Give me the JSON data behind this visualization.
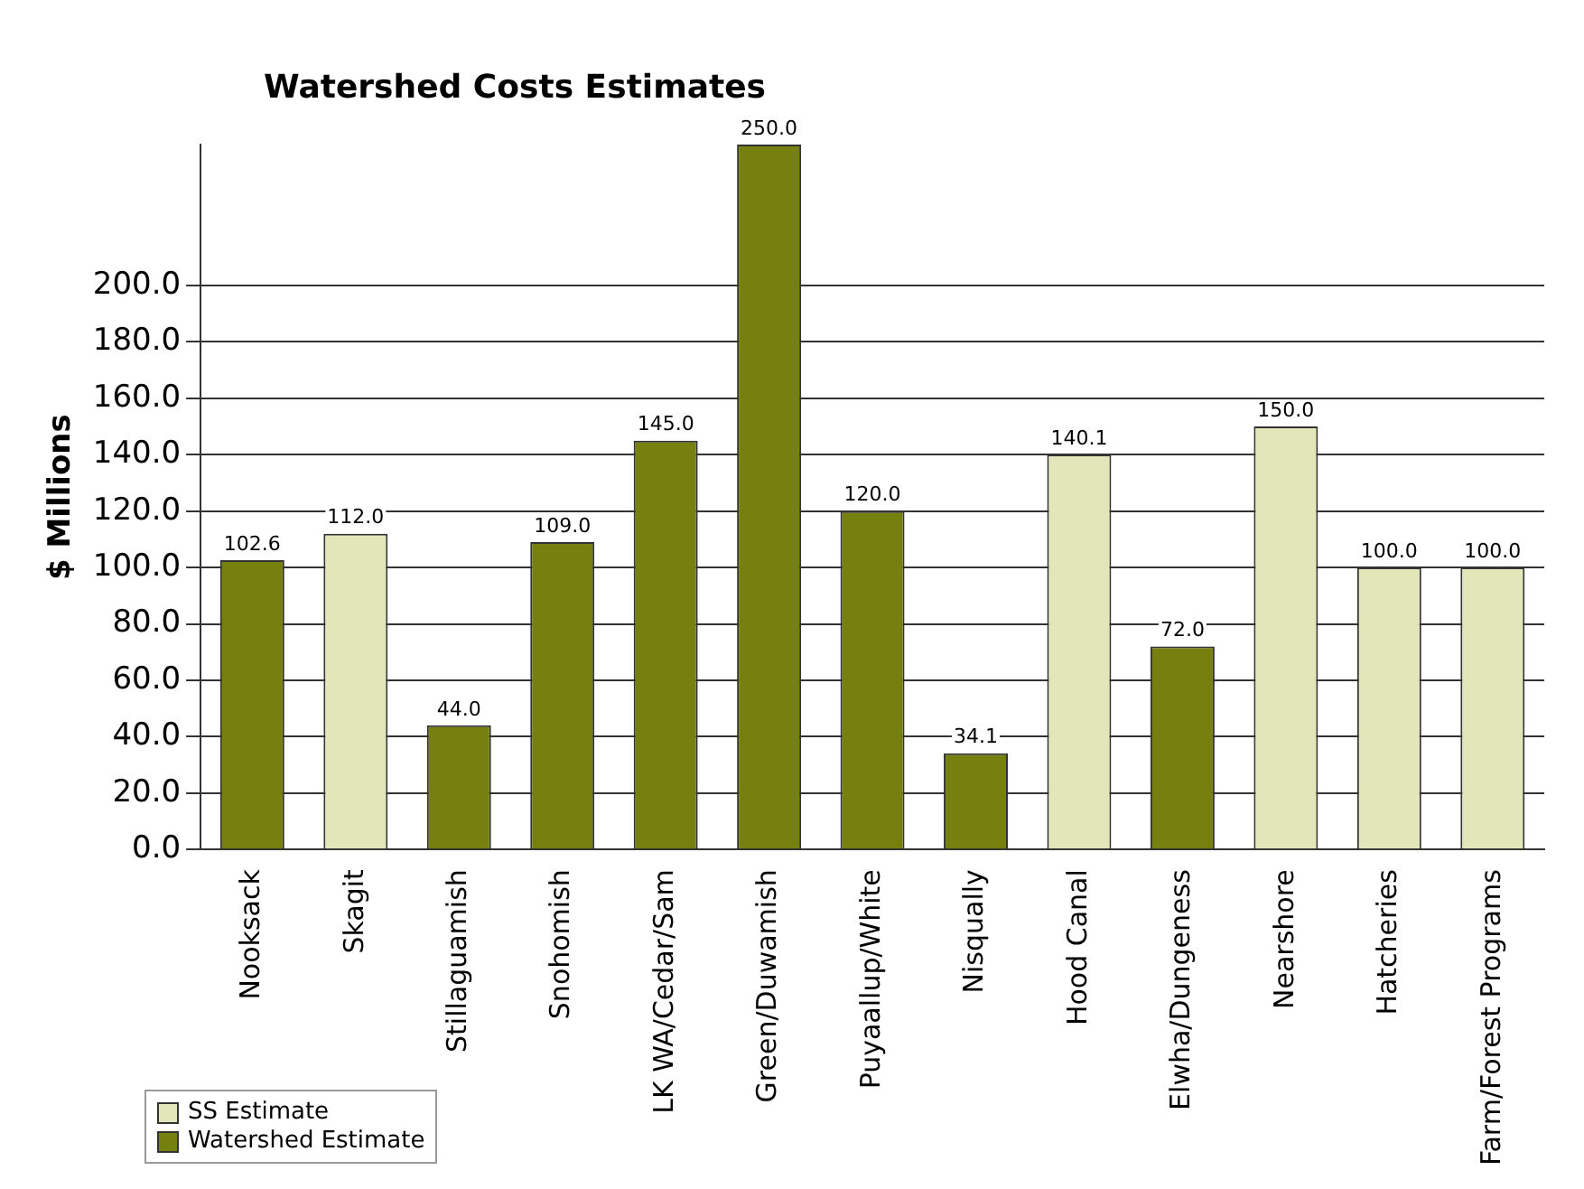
{
  "chart_data": {
    "type": "bar",
    "title": "Watershed Costs Estimates",
    "ylabel": "$ Millions",
    "categories": [
      "Nooksack",
      "Skagit",
      "Stillaguamish",
      "Snohomish",
      "LK WA/Cedar/Sam",
      "Green/Duwamish",
      "Puyaallup/White",
      "Nisqually",
      "Hood Canal",
      "Elwha/Dungeness",
      "Nearshore",
      "Hatcheries",
      "Farm/Forest Programs"
    ],
    "series": [
      {
        "name": "SS Estimate",
        "color": "#e2e6b8",
        "values": [
          null,
          112.0,
          null,
          null,
          null,
          null,
          null,
          null,
          140.1,
          null,
          150.0,
          100.0,
          100.0
        ],
        "value_labels": [
          null,
          "112.0",
          null,
          null,
          null,
          null,
          null,
          null,
          "140.1",
          null,
          "150.0",
          "100.0",
          "100.0"
        ]
      },
      {
        "name": "Watershed Estimate",
        "color": "#76800f",
        "values": [
          102.6,
          null,
          44.0,
          109.0,
          145.0,
          250.0,
          120.0,
          34.1,
          null,
          72.0,
          null,
          null,
          null
        ],
        "value_labels": [
          "102.6",
          null,
          "44.0",
          "109.0",
          "145.0",
          "250.0",
          "120.0",
          "34.1",
          null,
          "72.0",
          null,
          null,
          null
        ]
      }
    ],
    "ylim": [
      0,
      250
    ],
    "yticks": [
      {
        "value": 0,
        "label": "0.0"
      },
      {
        "value": 20,
        "label": "20.0"
      },
      {
        "value": 40,
        "label": "40.0"
      },
      {
        "value": 60,
        "label": "60.0"
      },
      {
        "value": 80,
        "label": "80.0"
      },
      {
        "value": 100,
        "label": "100.0"
      },
      {
        "value": 120,
        "label": "120.0"
      },
      {
        "value": 140,
        "label": "140.0"
      },
      {
        "value": 160,
        "label": "160.0"
      },
      {
        "value": 180,
        "label": "180.0"
      },
      {
        "value": 200,
        "label": "200.0"
      }
    ],
    "grid": "y",
    "legend": "bottom left"
  }
}
